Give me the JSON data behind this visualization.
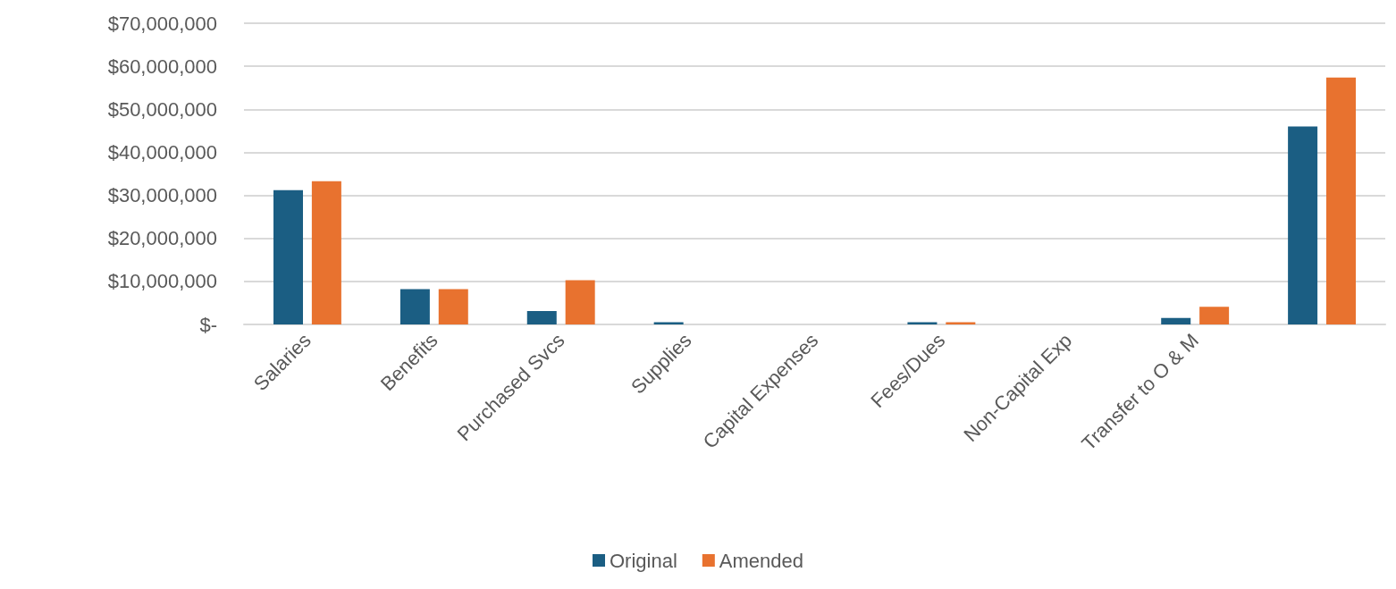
{
  "chart_data": {
    "type": "bar",
    "categories": [
      "Salaries",
      "Benefits",
      "Purchased Svcs",
      "Supplies",
      "Capital Expenses",
      "Fees/Dues",
      "Non-Capital Exp",
      "Transfer to O & M",
      null
    ],
    "series": [
      {
        "name": "Original",
        "color": "#1b5e83",
        "values": [
          31200000,
          8200000,
          3100000,
          500000,
          0,
          500000,
          0,
          1500000,
          46000000
        ]
      },
      {
        "name": "Amended",
        "color": "#e8722f",
        "values": [
          33300000,
          8200000,
          10300000,
          0,
          0,
          500000,
          0,
          4100000,
          57400000
        ]
      }
    ],
    "ylim": [
      0,
      70000000
    ],
    "yticks": [
      {
        "value": 0,
        "label": "$-"
      },
      {
        "value": 10000000,
        "label": "$10,000,000"
      },
      {
        "value": 20000000,
        "label": "$20,000,000"
      },
      {
        "value": 30000000,
        "label": "$30,000,000"
      },
      {
        "value": 40000000,
        "label": "$40,000,000"
      },
      {
        "value": 50000000,
        "label": "$50,000,000"
      },
      {
        "value": 60000000,
        "label": "$60,000,000"
      },
      {
        "value": 70000000,
        "label": "$70,000,000"
      }
    ],
    "grid": "y",
    "legend": "bottom"
  }
}
